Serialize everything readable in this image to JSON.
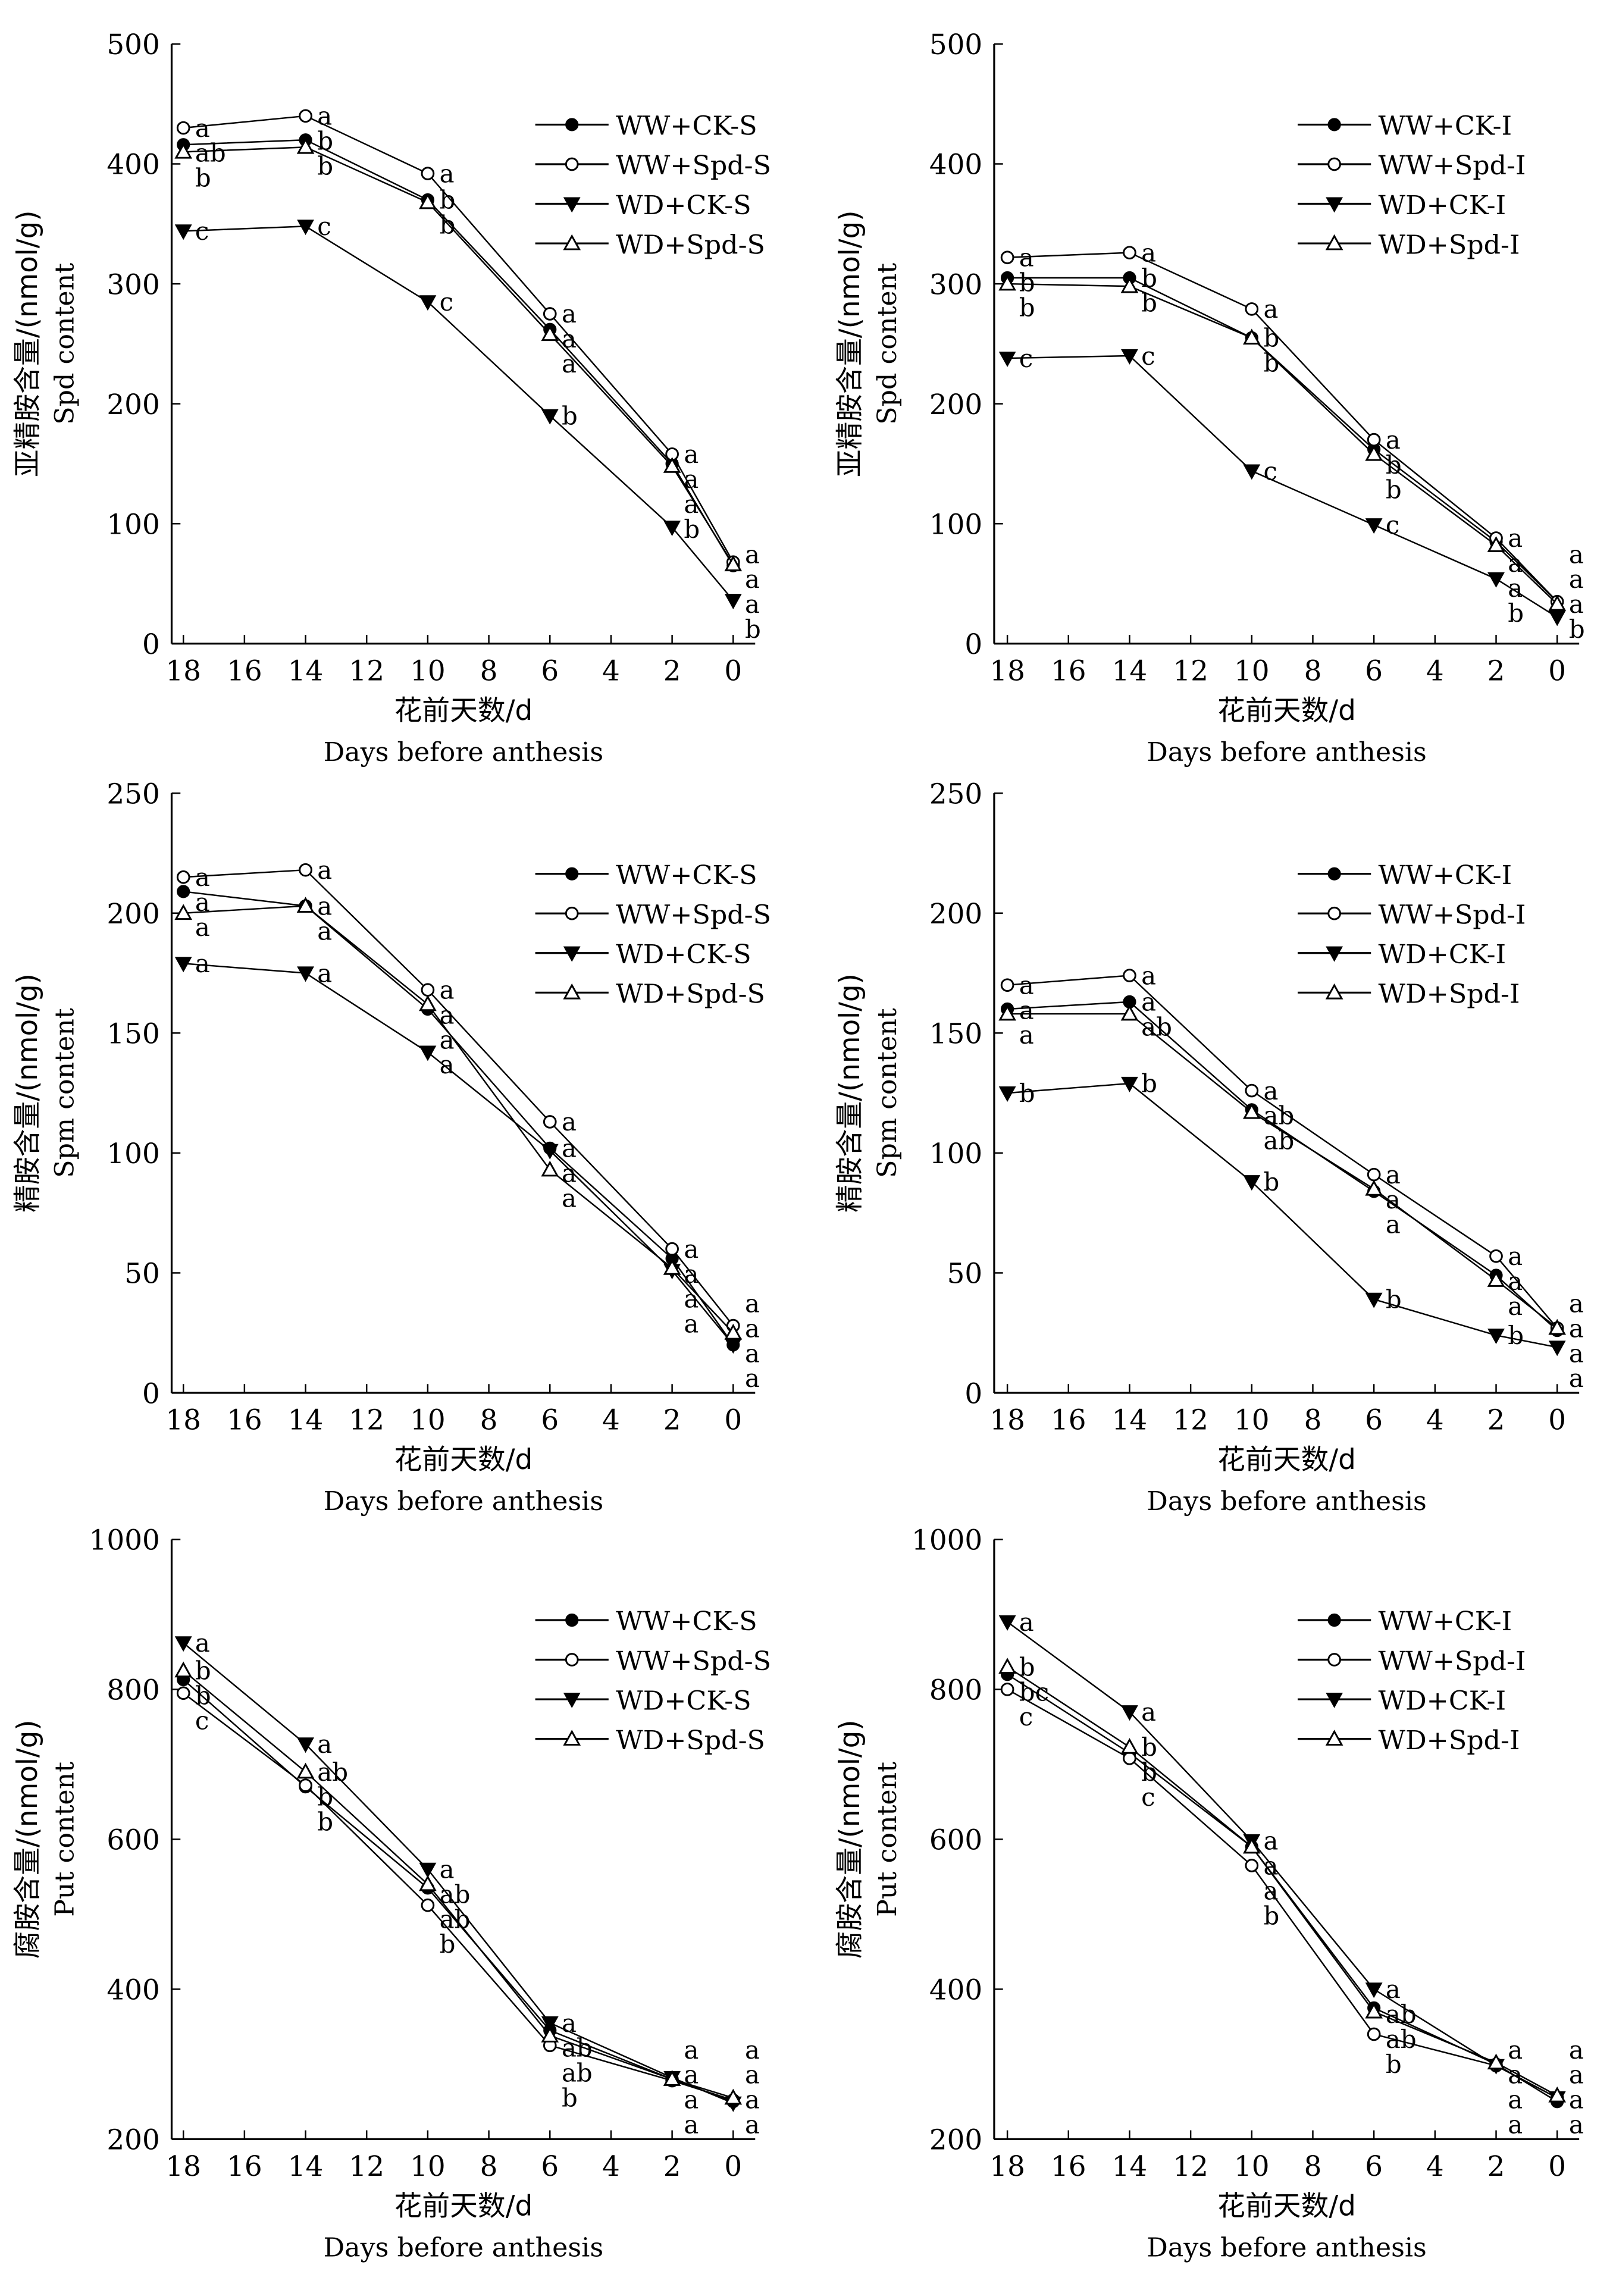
{
  "chart_data": [
    {
      "type": "line",
      "ylabel_cn": "亚精胺含量/(nmol/g)",
      "ylabel": "Spd content",
      "xlabel_cn": "花前天数/d",
      "xlabel": "Days before anthesis",
      "x": [
        18,
        14,
        10,
        6,
        2,
        0
      ],
      "xticks": [
        18,
        16,
        14,
        12,
        10,
        8,
        6,
        4,
        2,
        0
      ],
      "xlim": [
        18,
        0
      ],
      "ylim": [
        0,
        500
      ],
      "yticks": [
        0,
        100,
        200,
        300,
        400,
        500
      ],
      "legend_position": "top-right",
      "series": [
        {
          "name": "WW+CK-S",
          "marker": "filled-circle",
          "values": [
            416,
            420,
            370,
            262,
            150,
            65
          ],
          "letters": [
            "ab",
            "b",
            "b",
            "a",
            "a",
            "a"
          ]
        },
        {
          "name": "WW+Spd-S",
          "marker": "open-circle",
          "values": [
            430,
            440,
            392,
            275,
            158,
            68
          ],
          "letters": [
            "a",
            "a",
            "a",
            "a",
            "a",
            "a"
          ]
        },
        {
          "name": "WD+CK-S",
          "marker": "filled-triangle-down",
          "values": [
            344,
            348,
            285,
            190,
            97,
            36
          ],
          "letters": [
            "c",
            "c",
            "c",
            "b",
            "b",
            "b"
          ]
        },
        {
          "name": "WD+Spd-S",
          "marker": "open-triangle-up",
          "values": [
            410,
            414,
            368,
            258,
            148,
            66
          ],
          "letters": [
            "b",
            "b",
            "b",
            "a",
            "a",
            "a"
          ]
        }
      ]
    },
    {
      "type": "line",
      "ylabel_cn": "亚精胺含量/(nmol/g)",
      "ylabel": "Spd content",
      "xlabel_cn": "花前天数/d",
      "xlabel": "Days before anthesis",
      "x": [
        18,
        14,
        10,
        6,
        2,
        0
      ],
      "xticks": [
        18,
        16,
        14,
        12,
        10,
        8,
        6,
        4,
        2,
        0
      ],
      "xlim": [
        18,
        0
      ],
      "ylim": [
        0,
        500
      ],
      "yticks": [
        0,
        100,
        200,
        300,
        400,
        500
      ],
      "legend_position": "top-right",
      "series": [
        {
          "name": "WW+CK-I",
          "marker": "filled-circle",
          "values": [
            305,
            305,
            255,
            162,
            85,
            35
          ],
          "letters": [
            "b",
            "b",
            "b",
            "b",
            "a",
            "a"
          ]
        },
        {
          "name": "WW+Spd-I",
          "marker": "open-circle",
          "values": [
            322,
            326,
            279,
            170,
            88,
            35
          ],
          "letters": [
            "a",
            "a",
            "a",
            "a",
            "a",
            "a"
          ]
        },
        {
          "name": "WD+CK-I",
          "marker": "filled-triangle-down",
          "values": [
            238,
            240,
            144,
            99,
            54,
            22
          ],
          "letters": [
            "c",
            "c",
            "c",
            "c",
            "b",
            "b"
          ]
        },
        {
          "name": "WD+Spd-I",
          "marker": "open-triangle-up",
          "values": [
            300,
            298,
            255,
            158,
            82,
            33
          ],
          "letters": [
            "b",
            "b",
            "b",
            "b",
            "a",
            "a"
          ]
        }
      ]
    },
    {
      "type": "line",
      "ylabel_cn": "精胺含量/(nmol/g)",
      "ylabel": "Spm content",
      "xlabel_cn": "花前天数/d",
      "xlabel": "Days before anthesis",
      "x": [
        18,
        14,
        10,
        6,
        2,
        0
      ],
      "xticks": [
        18,
        16,
        14,
        12,
        10,
        8,
        6,
        4,
        2,
        0
      ],
      "xlim": [
        18,
        0
      ],
      "ylim": [
        0,
        250
      ],
      "yticks": [
        0,
        50,
        100,
        150,
        200,
        250
      ],
      "legend_position": "top-right",
      "series": [
        {
          "name": "WW+CK-S",
          "marker": "filled-circle",
          "values": [
            209,
            203,
            160,
            102,
            56,
            20
          ],
          "letters": [
            "a",
            "a",
            "a",
            "a",
            "a",
            "a"
          ]
        },
        {
          "name": "WW+Spd-S",
          "marker": "open-circle",
          "values": [
            215,
            218,
            168,
            113,
            60,
            28
          ],
          "letters": [
            "a",
            "a",
            "a",
            "a",
            "a",
            "a"
          ]
        },
        {
          "name": "WD+CK-S",
          "marker": "filled-triangle-down",
          "values": [
            179,
            175,
            142,
            101,
            51,
            20
          ],
          "letters": [
            "a",
            "a",
            "a",
            "a",
            "a",
            "a"
          ]
        },
        {
          "name": "WD+Spd-S",
          "marker": "open-triangle-up",
          "values": [
            200,
            203,
            162,
            93,
            52,
            25
          ],
          "letters": [
            "a",
            "a",
            "a",
            "a",
            "a",
            "a"
          ]
        }
      ]
    },
    {
      "type": "line",
      "ylabel_cn": "精胺含量/(nmol/g)",
      "ylabel": "Spm content",
      "xlabel_cn": "花前天数/d",
      "xlabel": "Days before anthesis",
      "x": [
        18,
        14,
        10,
        6,
        2,
        0
      ],
      "xticks": [
        18,
        16,
        14,
        12,
        10,
        8,
        6,
        4,
        2,
        0
      ],
      "xlim": [
        18,
        0
      ],
      "ylim": [
        0,
        250
      ],
      "yticks": [
        0,
        50,
        100,
        150,
        200,
        250
      ],
      "legend_position": "top-right",
      "series": [
        {
          "name": "WW+CK-I",
          "marker": "filled-circle",
          "values": [
            160,
            163,
            118,
            84,
            49,
            26
          ],
          "letters": [
            "a",
            "a",
            "ab",
            "a",
            "a",
            "a"
          ]
        },
        {
          "name": "WW+Spd-I",
          "marker": "open-circle",
          "values": [
            170,
            174,
            126,
            91,
            57,
            27
          ],
          "letters": [
            "a",
            "a",
            "a",
            "a",
            "a",
            "a"
          ]
        },
        {
          "name": "WD+CK-I",
          "marker": "filled-triangle-down",
          "values": [
            125,
            129,
            88,
            39,
            24,
            19
          ],
          "letters": [
            "b",
            "b",
            "b",
            "b",
            "b",
            "a"
          ]
        },
        {
          "name": "WD+Spd-I",
          "marker": "open-triangle-up",
          "values": [
            158,
            158,
            117,
            85,
            47,
            27
          ],
          "letters": [
            "a",
            "ab",
            "ab",
            "a",
            "a",
            "a"
          ]
        }
      ]
    },
    {
      "type": "line",
      "ylabel_cn": "腐胺含量/(nmol/g)",
      "ylabel": "Put content",
      "xlabel_cn": "花前天数/d",
      "xlabel": "Days before anthesis",
      "x": [
        18,
        14,
        10,
        6,
        2,
        0
      ],
      "xticks": [
        18,
        16,
        14,
        12,
        10,
        8,
        6,
        4,
        2,
        0
      ],
      "xlim": [
        18,
        0
      ],
      "ylim": [
        200,
        1000
      ],
      "yticks": [
        200,
        400,
        600,
        800,
        1000
      ],
      "legend_position": "top-right",
      "series": [
        {
          "name": "WW+CK-S",
          "marker": "filled-circle",
          "values": [
            813,
            670,
            535,
            345,
            280,
            250
          ],
          "letters": [
            "b",
            "b",
            "ab",
            "ab",
            "a",
            "a"
          ]
        },
        {
          "name": "WW+Spd-S",
          "marker": "open-circle",
          "values": [
            795,
            672,
            512,
            325,
            278,
            252
          ],
          "letters": [
            "c",
            "b",
            "b",
            "b",
            "a",
            "a"
          ]
        },
        {
          "name": "WD+CK-S",
          "marker": "filled-triangle-down",
          "values": [
            862,
            727,
            560,
            355,
            282,
            248
          ],
          "letters": [
            "a",
            "a",
            "a",
            "a",
            "a",
            "a"
          ]
        },
        {
          "name": "WD+Spd-S",
          "marker": "open-triangle-up",
          "values": [
            825,
            690,
            540,
            338,
            280,
            255
          ],
          "letters": [
            "b",
            "ab",
            "ab",
            "ab",
            "a",
            "a"
          ]
        }
      ]
    },
    {
      "type": "line",
      "ylabel_cn": "腐胺含量/(nmol/g)",
      "ylabel": "Put content",
      "xlabel_cn": "花前天数/d",
      "xlabel": "Days before anthesis",
      "x": [
        18,
        14,
        10,
        6,
        2,
        0
      ],
      "xticks": [
        18,
        16,
        14,
        12,
        10,
        8,
        6,
        4,
        2,
        0
      ],
      "xlim": [
        18,
        0
      ],
      "ylim": [
        200,
        1000
      ],
      "yticks": [
        200,
        400,
        600,
        800,
        1000
      ],
      "legend_position": "top-right",
      "series": [
        {
          "name": "WW+CK-I",
          "marker": "filled-circle",
          "values": [
            820,
            715,
            590,
            375,
            300,
            250
          ],
          "letters": [
            "bc",
            "b",
            "a",
            "ab",
            "a",
            "a"
          ]
        },
        {
          "name": "WW+Spd-I",
          "marker": "open-circle",
          "values": [
            800,
            708,
            565,
            340,
            298,
            255
          ],
          "letters": [
            "c",
            "c",
            "b",
            "b",
            "a",
            "a"
          ]
        },
        {
          "name": "WD+CK-I",
          "marker": "filled-triangle-down",
          "values": [
            890,
            770,
            598,
            400,
            298,
            255
          ],
          "letters": [
            "a",
            "a",
            "a",
            "a",
            "a",
            "a"
          ]
        },
        {
          "name": "WD+Spd-I",
          "marker": "open-triangle-up",
          "values": [
            830,
            723,
            590,
            370,
            302,
            258
          ],
          "letters": [
            "b",
            "b",
            "a",
            "ab",
            "a",
            "a"
          ]
        }
      ]
    }
  ]
}
